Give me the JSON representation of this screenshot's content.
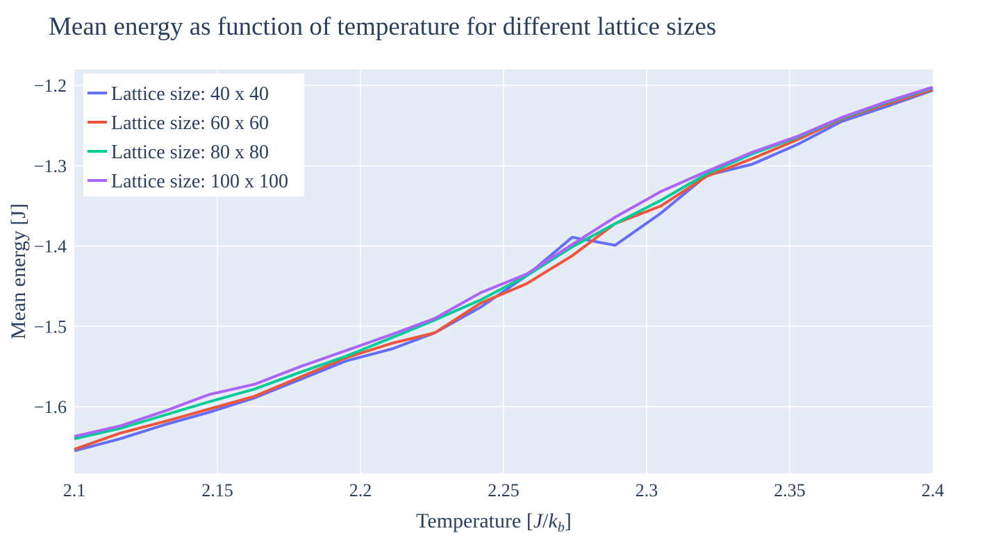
{
  "chart_data": {
    "type": "line",
    "title": "Mean energy as function of temperature for different lattice sizes",
    "xlabel": "Temperature",
    "xlabel_units": "[J/k_b]",
    "xlabel_units_parts": {
      "open": "[",
      "J": "J",
      "slash": "/",
      "k": "k",
      "sub": "b",
      "close": "]"
    },
    "ylabel": "Mean energy [J]",
    "xlim": [
      2.1,
      2.4
    ],
    "ylim": [
      -1.683,
      -1.18
    ],
    "xticks": [
      2.1,
      2.15,
      2.2,
      2.25,
      2.3,
      2.35,
      2.4
    ],
    "xtick_labels": [
      "2.1",
      "2.15",
      "2.2",
      "2.25",
      "2.3",
      "2.35",
      "2.4"
    ],
    "yticks": [
      -1.2,
      -1.3,
      -1.4,
      -1.5,
      -1.6
    ],
    "ytick_labels": [
      "−1.2",
      "−1.3",
      "−1.4",
      "−1.5",
      "−1.6"
    ],
    "grid": true,
    "legend_position": "top-left",
    "x": [
      2.1,
      2.116,
      2.132,
      2.147,
      2.163,
      2.179,
      2.195,
      2.211,
      2.226,
      2.242,
      2.258,
      2.274,
      2.289,
      2.305,
      2.321,
      2.337,
      2.353,
      2.368,
      2.384,
      2.4
    ],
    "series": [
      {
        "name": "Lattice size: 40 x 40",
        "color": "#636efa",
        "values": [
          -1.655,
          -1.64,
          -1.622,
          -1.607,
          -1.589,
          -1.566,
          -1.543,
          -1.528,
          -1.508,
          -1.476,
          -1.437,
          -1.389,
          -1.399,
          -1.359,
          -1.312,
          -1.298,
          -1.273,
          -1.245,
          -1.226,
          -1.206
        ]
      },
      {
        "name": "Lattice size: 60 x 60",
        "color": "#ef553b",
        "values": [
          -1.653,
          -1.633,
          -1.618,
          -1.603,
          -1.587,
          -1.563,
          -1.539,
          -1.521,
          -1.508,
          -1.471,
          -1.447,
          -1.412,
          -1.372,
          -1.35,
          -1.313,
          -1.291,
          -1.267,
          -1.242,
          -1.223,
          -1.205
        ]
      },
      {
        "name": "Lattice size: 80 x 80",
        "color": "#00cc96",
        "values": [
          -1.64,
          -1.627,
          -1.61,
          -1.594,
          -1.578,
          -1.557,
          -1.537,
          -1.514,
          -1.492,
          -1.467,
          -1.437,
          -1.401,
          -1.372,
          -1.343,
          -1.31,
          -1.285,
          -1.264,
          -1.241,
          -1.221,
          -1.203
        ]
      },
      {
        "name": "Lattice size: 100 x 100",
        "color": "#ab63fa",
        "values": [
          -1.637,
          -1.624,
          -1.605,
          -1.585,
          -1.572,
          -1.55,
          -1.53,
          -1.51,
          -1.49,
          -1.458,
          -1.435,
          -1.398,
          -1.364,
          -1.332,
          -1.307,
          -1.283,
          -1.263,
          -1.24,
          -1.22,
          -1.202
        ]
      }
    ]
  }
}
